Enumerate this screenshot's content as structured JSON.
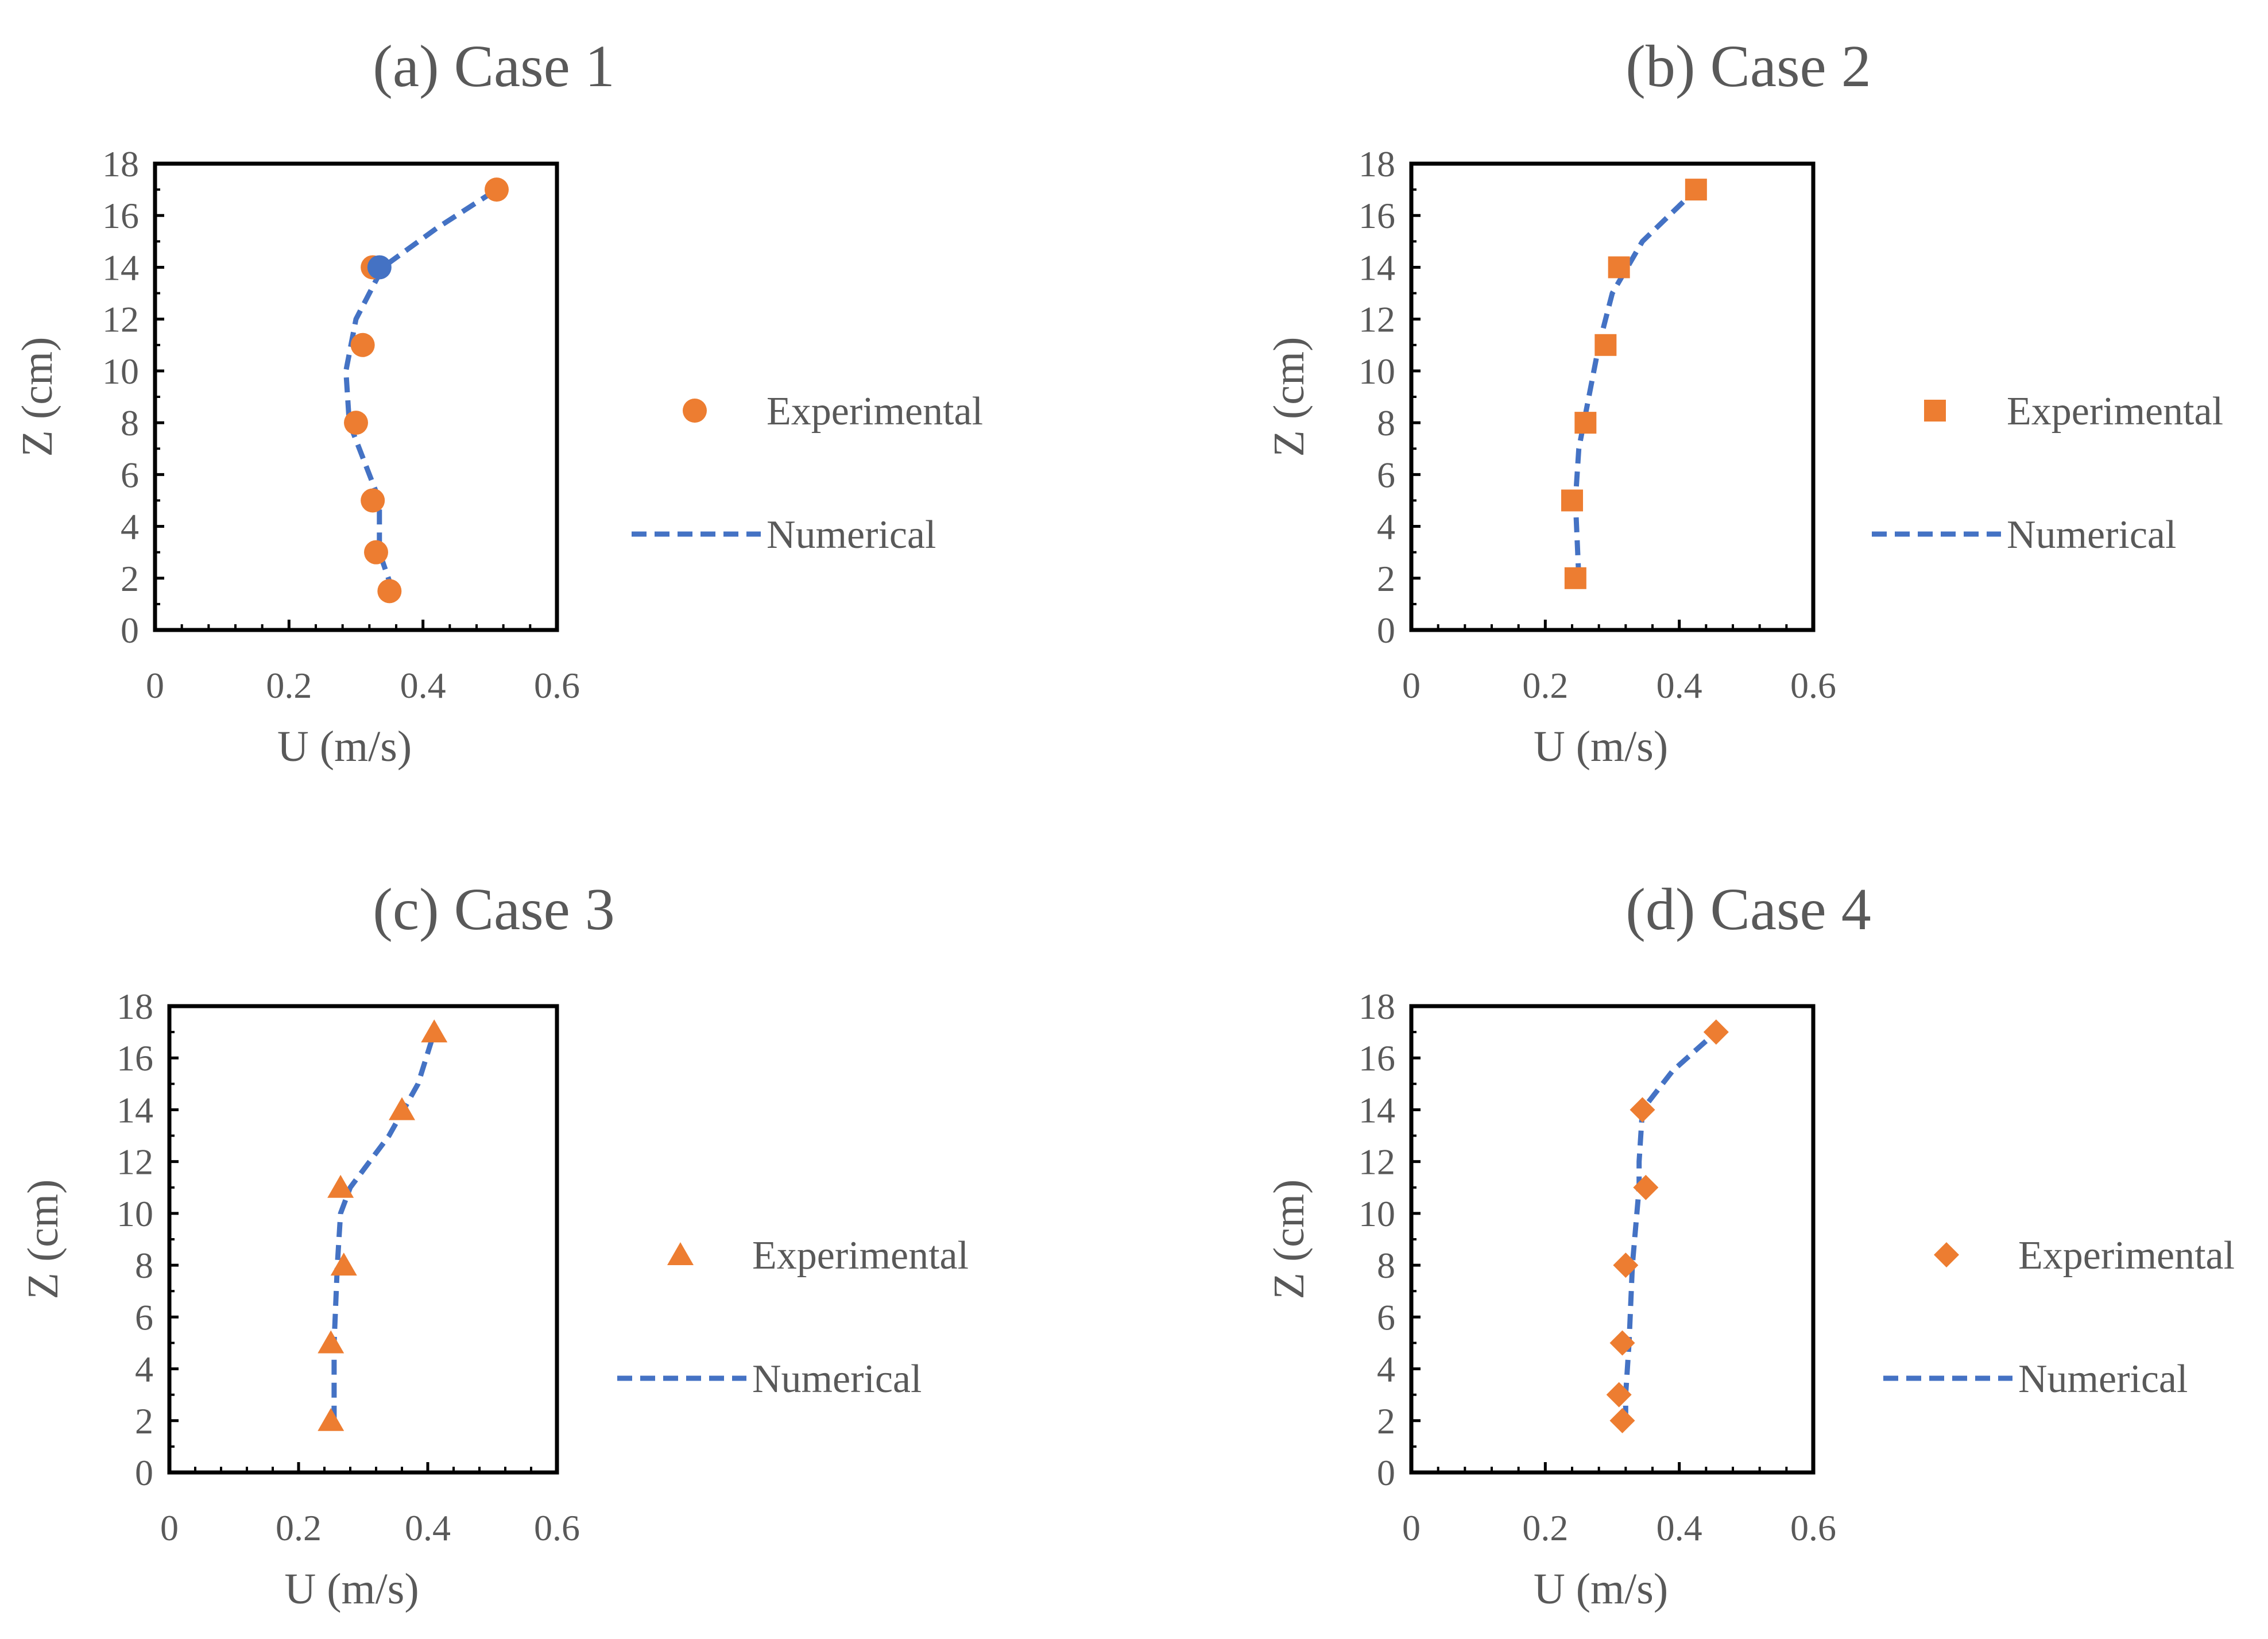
{
  "colors": {
    "experimental": "#ED7D31",
    "numerical": "#4472C4",
    "axis": "#000000",
    "text": "#595959"
  },
  "chart_data": [
    {
      "type": "scatter",
      "title": "(a) Case 1",
      "xlabel": "U (m/s)",
      "ylabel": "Z (cm)",
      "xlim": [
        0,
        0.6
      ],
      "ylim": [
        0,
        18
      ],
      "x_ticks": [
        "0",
        "0.2",
        "0.4",
        "0.6"
      ],
      "y_ticks": [
        "0",
        "2",
        "4",
        "6",
        "8",
        "10",
        "12",
        "14",
        "16",
        "18"
      ],
      "legend": {
        "position": "right",
        "experimental": "Experimental",
        "numerical": "Numerical"
      },
      "marker": "circle",
      "experimental": {
        "name": "Experimental",
        "x": [
          0.35,
          0.33,
          0.325,
          0.3,
          0.31,
          0.325,
          0.51
        ],
        "y": [
          1.5,
          3,
          5,
          8,
          11,
          14,
          17
        ]
      },
      "numerical": {
        "name": "Numerical",
        "x": [
          0.355,
          0.335,
          0.335,
          0.29,
          0.285,
          0.3,
          0.34,
          0.42,
          0.51
        ],
        "y": [
          1.5,
          3,
          5,
          8,
          10,
          12,
          14,
          15.5,
          17
        ]
      }
    },
    {
      "type": "scatter",
      "title": "(b) Case 2",
      "xlabel": "U (m/s)",
      "ylabel": "Z (cm)",
      "xlim": [
        0,
        0.6
      ],
      "ylim": [
        0,
        18
      ],
      "x_ticks": [
        "0",
        "0.2",
        "0.4",
        "0.6"
      ],
      "y_ticks": [
        "0",
        "2",
        "4",
        "6",
        "8",
        "10",
        "12",
        "14",
        "16",
        "18"
      ],
      "legend": {
        "position": "right",
        "experimental": "Experimental",
        "numerical": "Numerical"
      },
      "marker": "square",
      "experimental": {
        "name": "Experimental",
        "x": [
          0.245,
          0.24,
          0.26,
          0.29,
          0.31,
          0.425
        ],
        "y": [
          2,
          5,
          8,
          11,
          14,
          17
        ]
      },
      "numerical": {
        "name": "Numerical",
        "x": [
          0.25,
          0.245,
          0.25,
          0.265,
          0.28,
          0.3,
          0.345,
          0.425
        ],
        "y": [
          2,
          5,
          7,
          9,
          11,
          13,
          15,
          17
        ]
      }
    },
    {
      "type": "scatter",
      "title": "(c) Case 3",
      "xlabel": "U (m/s)",
      "ylabel": "Z (cm)",
      "xlim": [
        0,
        0.6
      ],
      "ylim": [
        0,
        18
      ],
      "x_ticks": [
        "0",
        "0.2",
        "0.4",
        "0.6"
      ],
      "y_ticks": [
        "0",
        "2",
        "4",
        "6",
        "8",
        "10",
        "12",
        "14",
        "16",
        "18"
      ],
      "legend": {
        "position": "right",
        "experimental": "Experimental",
        "numerical": "Numerical"
      },
      "marker": "triangle",
      "experimental": {
        "name": "Experimental",
        "x": [
          0.25,
          0.25,
          0.27,
          0.265,
          0.36,
          0.41
        ],
        "y": [
          2,
          5,
          8,
          11,
          14,
          17
        ]
      },
      "numerical": {
        "name": "Numerical",
        "x": [
          0.255,
          0.255,
          0.26,
          0.265,
          0.28,
          0.34,
          0.385,
          0.41
        ],
        "y": [
          2,
          5,
          8,
          10,
          11,
          13,
          15,
          17
        ]
      }
    },
    {
      "type": "scatter",
      "title": "(d) Case 4",
      "xlabel": "U (m/s)",
      "ylabel": "Z (cm)",
      "xlim": [
        0,
        0.6
      ],
      "ylim": [
        0,
        18
      ],
      "x_ticks": [
        "0",
        "0.2",
        "0.4",
        "0.6"
      ],
      "y_ticks": [
        "0",
        "2",
        "4",
        "6",
        "8",
        "10",
        "12",
        "14",
        "16",
        "18"
      ],
      "legend": {
        "position": "right",
        "experimental": "Experimental",
        "numerical": "Numerical"
      },
      "marker": "diamond",
      "experimental": {
        "name": "Experimental",
        "x": [
          0.315,
          0.31,
          0.315,
          0.32,
          0.35,
          0.345,
          0.455
        ],
        "y": [
          2,
          3,
          5,
          8,
          11,
          14,
          17
        ]
      },
      "numerical": {
        "name": "Numerical",
        "x": [
          0.32,
          0.32,
          0.325,
          0.33,
          0.34,
          0.34,
          0.345,
          0.39,
          0.455
        ],
        "y": [
          2,
          3,
          5,
          8,
          11,
          12,
          14,
          15.5,
          17
        ]
      }
    }
  ]
}
